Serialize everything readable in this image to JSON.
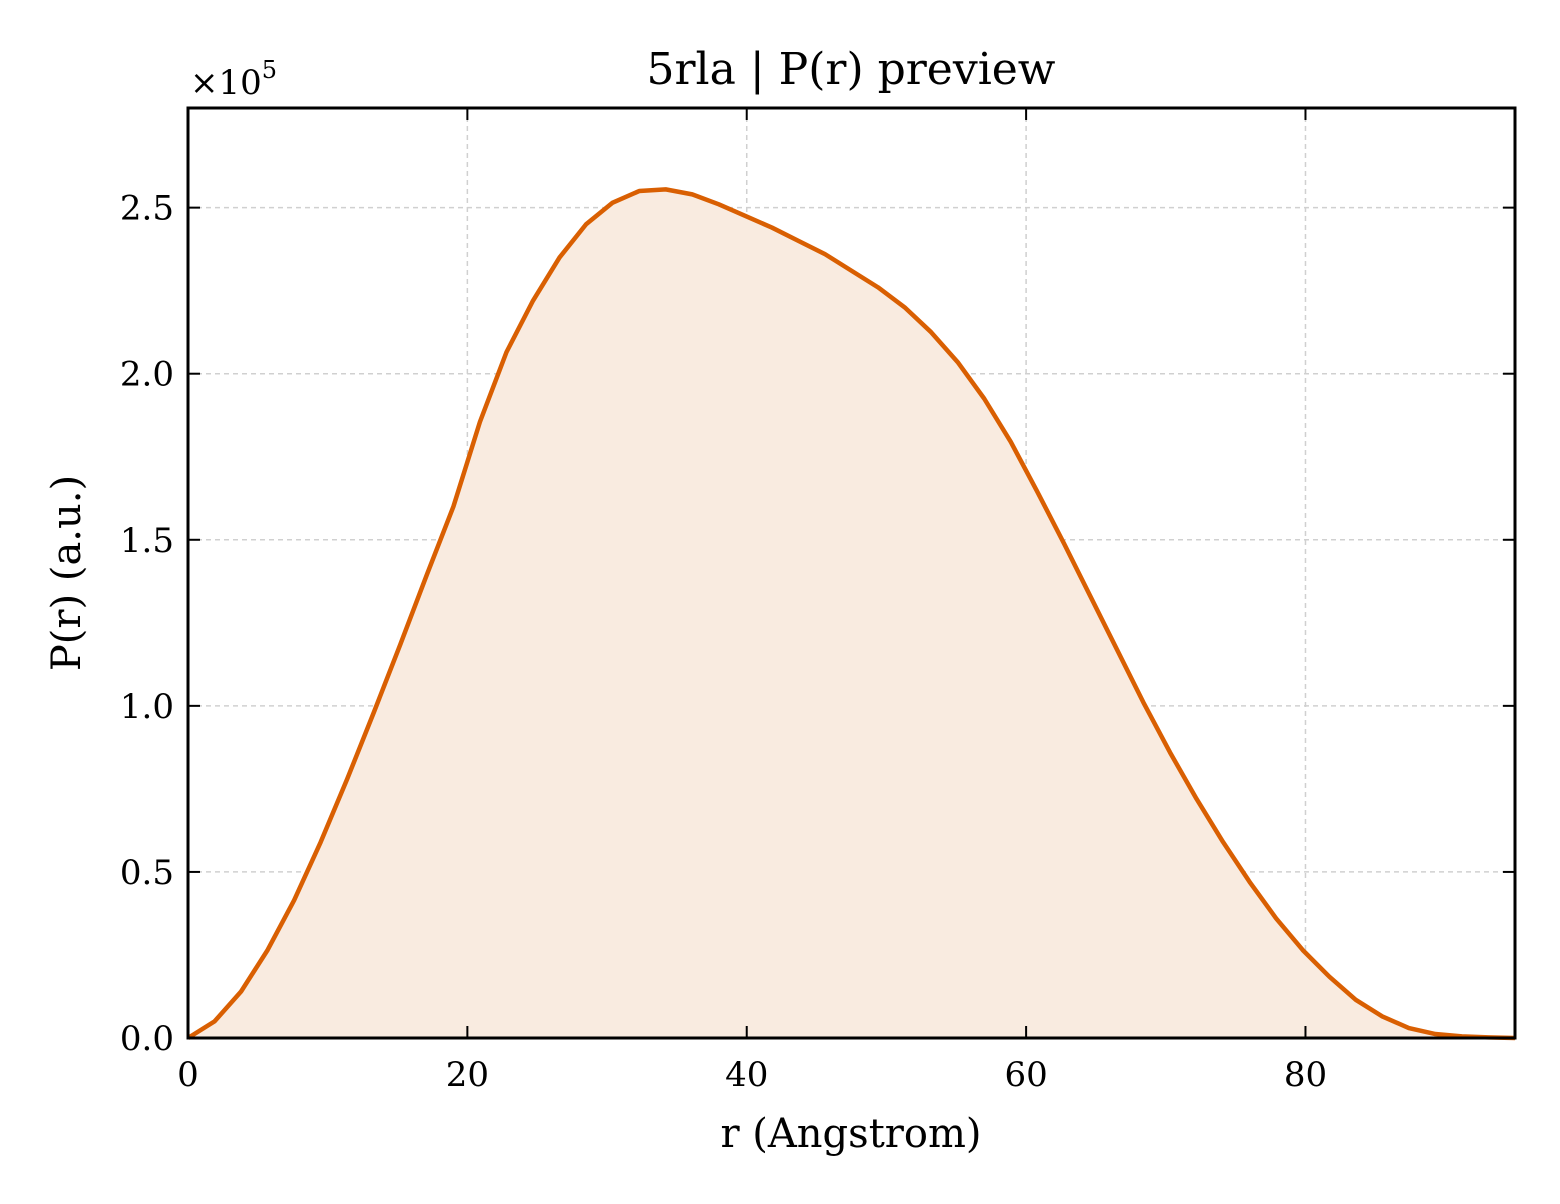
{
  "chart_data": {
    "type": "area",
    "title": "5rla | P(r) preview",
    "xlabel": "r (Angstrom)",
    "ylabel": "P(r) (a.u.)",
    "y_scale_label": "×10",
    "y_scale_exponent": "5",
    "xlim": [
      0,
      95
    ],
    "ylim": [
      0,
      2.8
    ],
    "y_multiplier": 100000,
    "xticks": [
      0,
      20,
      40,
      60,
      80
    ],
    "xtick_labels": [
      "0",
      "20",
      "40",
      "60",
      "80"
    ],
    "yticks": [
      0,
      0.5,
      1.0,
      1.5,
      2.0,
      2.5
    ],
    "ytick_labels": [
      "0.0",
      "0.5",
      "1.0",
      "1.5",
      "2.0",
      "2.5"
    ],
    "grid": true,
    "line_color": "#d95f02",
    "fill_color": "#f9ebe0",
    "series": [
      {
        "x": [
          0,
          1.9,
          3.8,
          5.7,
          7.6,
          9.5,
          11.4,
          13.3,
          15.2,
          17.1,
          19.0,
          20.9,
          22.8,
          24.7,
          26.6,
          28.5,
          30.4,
          32.3,
          34.2,
          36.1,
          38.0,
          39.9,
          41.8,
          43.7,
          45.6,
          47.5,
          49.4,
          51.3,
          53.2,
          55.1,
          57.0,
          58.9,
          60.8,
          62.7,
          64.6,
          66.5,
          68.4,
          70.3,
          72.2,
          74.1,
          76.0,
          77.9,
          79.8,
          81.7,
          83.6,
          85.5,
          87.4,
          89.3,
          91.2,
          93.1,
          95.0
        ],
        "values": [
          0.0,
          0.05,
          0.14,
          0.265,
          0.415,
          0.59,
          0.78,
          0.98,
          1.185,
          1.395,
          1.6,
          1.855,
          2.065,
          2.22,
          2.35,
          2.45,
          2.515,
          2.55,
          2.555,
          2.54,
          2.51,
          2.475,
          2.44,
          2.4,
          2.36,
          2.31,
          2.26,
          2.2,
          2.125,
          2.035,
          1.925,
          1.795,
          1.645,
          1.49,
          1.33,
          1.17,
          1.01,
          0.86,
          0.72,
          0.59,
          0.47,
          0.36,
          0.265,
          0.185,
          0.115,
          0.065,
          0.03,
          0.012,
          0.005,
          0.002,
          0.0
        ]
      }
    ]
  }
}
